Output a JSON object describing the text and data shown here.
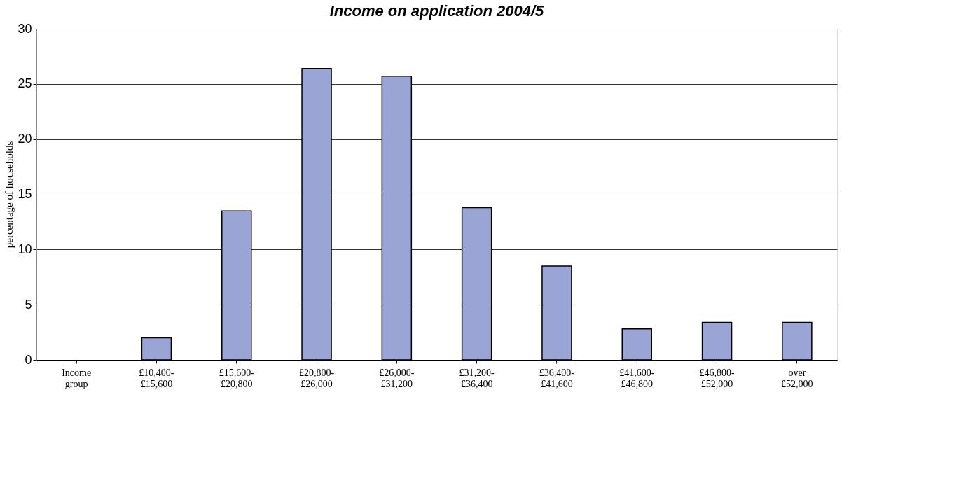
{
  "chart_data": {
    "type": "bar",
    "title": "Income on application 2004/5",
    "ylabel": "percentage of households",
    "categories": [
      "Income\ngroup",
      "£10,400-\n£15,600",
      "£15,600-\n£20,800",
      "£20,800-\n£26,000",
      "£26,000-\n£31,200",
      "£31,200-\n£36,400",
      "£36,400-\n£41,600",
      "£41,600-\n£46,800",
      "£46,800-\n£52,000",
      "over\n£52,000"
    ],
    "values": [
      null,
      2.0,
      13.5,
      26.4,
      25.7,
      13.8,
      8.5,
      2.8,
      3.4,
      3.4
    ],
    "color": "#9aa5d6",
    "ylim": [
      0,
      30
    ],
    "yticks": [
      0,
      5,
      10,
      15,
      20,
      25,
      30
    ],
    "grid": "y"
  }
}
